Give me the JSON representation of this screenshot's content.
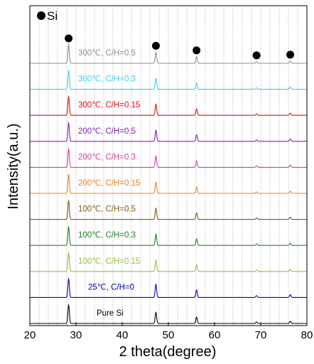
{
  "chart_data": {
    "type": "line",
    "xlabel": "2 theta(degree)",
    "ylabel": "Intensity(a.u.)",
    "xlim": [
      20,
      80
    ],
    "x_ticks": [
      "20",
      "30",
      "40",
      "50",
      "60",
      "70",
      "80"
    ],
    "grid": "vertical dotted, every 2 degrees",
    "legend": {
      "marker": "filled-circle",
      "label": "Si",
      "placement": "top-left"
    },
    "peak_markers_x": [
      28.4,
      47.3,
      56.1,
      69.1,
      76.4
    ],
    "series": [
      {
        "name": "Pure Si",
        "color": "#000000",
        "peaks": [
          [
            28.4,
            1.0
          ],
          [
            47.3,
            0.6
          ],
          [
            56.1,
            0.35
          ],
          [
            69.1,
            0.08
          ],
          [
            76.4,
            0.12
          ]
        ]
      },
      {
        "name": "25℃, C/H=0",
        "color": "#0000c0",
        "peaks": [
          [
            28.4,
            1.0
          ],
          [
            47.3,
            0.7
          ],
          [
            56.1,
            0.4
          ],
          [
            69.1,
            0.1
          ],
          [
            76.4,
            0.15
          ]
        ]
      },
      {
        "name": "100℃, C/H=0.15",
        "color": "#99c040",
        "peaks": [
          [
            28.4,
            1.0
          ],
          [
            47.3,
            0.6
          ],
          [
            56.1,
            0.35
          ],
          [
            69.1,
            0.08
          ],
          [
            76.4,
            0.12
          ]
        ]
      },
      {
        "name": "100℃, C/H=0.3",
        "color": "#208020",
        "peaks": [
          [
            28.4,
            1.0
          ],
          [
            47.3,
            0.6
          ],
          [
            56.1,
            0.35
          ],
          [
            69.1,
            0.08
          ],
          [
            76.4,
            0.12
          ]
        ]
      },
      {
        "name": "100℃, C/H=0.5",
        "color": "#7a5c10",
        "peaks": [
          [
            28.4,
            1.0
          ],
          [
            47.3,
            0.6
          ],
          [
            56.1,
            0.35
          ],
          [
            69.1,
            0.08
          ],
          [
            76.4,
            0.12
          ]
        ]
      },
      {
        "name": "200℃, C/H=0.15",
        "color": "#f08020",
        "peaks": [
          [
            28.4,
            1.0
          ],
          [
            47.3,
            0.6
          ],
          [
            56.1,
            0.35
          ],
          [
            69.1,
            0.08
          ],
          [
            76.4,
            0.12
          ]
        ]
      },
      {
        "name": "200℃, C/H=0.3",
        "color": "#d040a0",
        "peaks": [
          [
            28.4,
            1.0
          ],
          [
            47.3,
            0.6
          ],
          [
            56.1,
            0.35
          ],
          [
            69.1,
            0.08
          ],
          [
            76.4,
            0.12
          ]
        ]
      },
      {
        "name": "200℃, C/H=0.5",
        "color": "#8020b0",
        "peaks": [
          [
            28.4,
            1.0
          ],
          [
            47.3,
            0.6
          ],
          [
            56.1,
            0.35
          ],
          [
            69.1,
            0.08
          ],
          [
            76.4,
            0.12
          ]
        ]
      },
      {
        "name": "300℃, C/H=0.15",
        "color": "#e01010",
        "peaks": [
          [
            28.4,
            1.0
          ],
          [
            47.3,
            0.6
          ],
          [
            56.1,
            0.35
          ],
          [
            69.1,
            0.08
          ],
          [
            76.4,
            0.12
          ]
        ]
      },
      {
        "name": "300℃, C/H=0.3",
        "color": "#40d0f0",
        "peaks": [
          [
            28.4,
            1.0
          ],
          [
            47.3,
            0.6
          ],
          [
            56.1,
            0.35
          ],
          [
            69.1,
            0.08
          ],
          [
            76.4,
            0.12
          ]
        ]
      },
      {
        "name": "300℃, C/H=0.5",
        "color": "#909090",
        "peaks": [
          [
            28.4,
            1.0
          ],
          [
            47.3,
            0.6
          ],
          [
            56.1,
            0.35
          ],
          [
            69.1,
            0.08
          ],
          [
            76.4,
            0.12
          ]
        ]
      }
    ]
  }
}
